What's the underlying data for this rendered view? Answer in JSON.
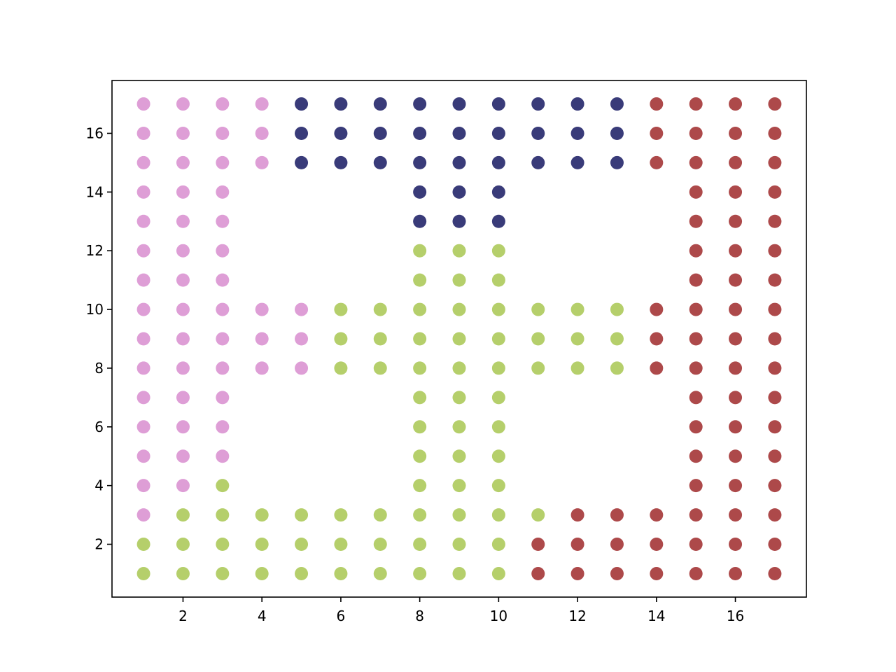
{
  "chart_data": {
    "type": "scatter",
    "xlim": [
      0.2,
      17.8
    ],
    "ylim": [
      0.2,
      17.8
    ],
    "xticks": [
      2,
      4,
      6,
      8,
      10,
      12,
      14,
      16
    ],
    "yticks": [
      2,
      4,
      6,
      8,
      10,
      12,
      14,
      16
    ],
    "grid": false,
    "series": [
      {
        "color": "#de9ed6",
        "x": [
          1,
          2,
          3,
          4,
          1,
          2,
          3,
          4,
          1,
          2,
          3,
          4,
          1,
          2,
          3,
          1,
          2,
          3,
          1,
          2,
          3,
          1,
          2,
          3,
          1,
          2,
          3,
          4,
          5,
          1,
          2,
          3,
          4,
          5,
          1,
          2,
          3,
          4,
          5,
          1,
          2,
          3,
          1,
          2,
          3,
          1,
          2,
          3,
          1,
          2,
          1
        ],
        "y": [
          17,
          17,
          17,
          17,
          16,
          16,
          16,
          16,
          15,
          15,
          15,
          15,
          14,
          14,
          14,
          13,
          13,
          13,
          12,
          12,
          12,
          11,
          11,
          11,
          10,
          10,
          10,
          10,
          10,
          9,
          9,
          9,
          9,
          9,
          8,
          8,
          8,
          8,
          8,
          7,
          7,
          7,
          6,
          6,
          6,
          5,
          5,
          5,
          4,
          4,
          3
        ]
      },
      {
        "color": "#393b79",
        "x": [
          5,
          6,
          7,
          8,
          9,
          10,
          11,
          12,
          13,
          5,
          6,
          7,
          8,
          9,
          10,
          11,
          12,
          13,
          5,
          6,
          7,
          8,
          9,
          10,
          11,
          12,
          13,
          8,
          9,
          10,
          8,
          9,
          10
        ],
        "y": [
          17,
          17,
          17,
          17,
          17,
          17,
          17,
          17,
          17,
          16,
          16,
          16,
          16,
          16,
          16,
          16,
          16,
          16,
          15,
          15,
          15,
          15,
          15,
          15,
          15,
          15,
          15,
          14,
          14,
          14,
          13,
          13,
          13
        ]
      },
      {
        "color": "#b5cf6b",
        "x": [
          8,
          9,
          10,
          8,
          9,
          10,
          6,
          7,
          8,
          9,
          10,
          11,
          12,
          13,
          6,
          7,
          8,
          9,
          10,
          11,
          12,
          13,
          6,
          7,
          8,
          9,
          10,
          11,
          12,
          13,
          8,
          9,
          10,
          8,
          9,
          10,
          8,
          9,
          10,
          3,
          8,
          9,
          10,
          2,
          3,
          4,
          5,
          6,
          7,
          8,
          9,
          10,
          11,
          1,
          2,
          3,
          4,
          5,
          6,
          7,
          8,
          9,
          10,
          1,
          2,
          3,
          4,
          5,
          6,
          7,
          8,
          9,
          10
        ],
        "y": [
          12,
          12,
          12,
          11,
          11,
          11,
          10,
          10,
          10,
          10,
          10,
          10,
          10,
          10,
          9,
          9,
          9,
          9,
          9,
          9,
          9,
          9,
          8,
          8,
          8,
          8,
          8,
          8,
          8,
          8,
          7,
          7,
          7,
          6,
          6,
          6,
          5,
          5,
          5,
          4,
          4,
          4,
          4,
          3,
          3,
          3,
          3,
          3,
          3,
          3,
          3,
          3,
          3,
          2,
          2,
          2,
          2,
          2,
          2,
          2,
          2,
          2,
          2,
          1,
          1,
          1,
          1,
          1,
          1,
          1,
          1,
          1,
          1
        ]
      },
      {
        "color": "#ad494a",
        "x": [
          14,
          15,
          16,
          17,
          14,
          15,
          16,
          17,
          14,
          15,
          16,
          17,
          15,
          16,
          17,
          15,
          16,
          17,
          15,
          16,
          17,
          15,
          16,
          17,
          14,
          15,
          16,
          17,
          14,
          15,
          16,
          17,
          14,
          15,
          16,
          17,
          15,
          16,
          17,
          15,
          16,
          17,
          15,
          16,
          17,
          15,
          16,
          17,
          12,
          13,
          14,
          15,
          16,
          17,
          11,
          12,
          13,
          14,
          15,
          16,
          17,
          11,
          12,
          13,
          14,
          15,
          16,
          17
        ],
        "y": [
          17,
          17,
          17,
          17,
          16,
          16,
          16,
          16,
          15,
          15,
          15,
          15,
          14,
          14,
          14,
          13,
          13,
          13,
          12,
          12,
          12,
          11,
          11,
          11,
          10,
          10,
          10,
          10,
          9,
          9,
          9,
          9,
          8,
          8,
          8,
          8,
          7,
          7,
          7,
          6,
          6,
          6,
          5,
          5,
          5,
          4,
          4,
          4,
          3,
          3,
          3,
          3,
          3,
          3,
          2,
          2,
          2,
          2,
          2,
          2,
          2,
          1,
          1,
          1,
          1,
          1,
          1,
          1
        ]
      }
    ]
  }
}
